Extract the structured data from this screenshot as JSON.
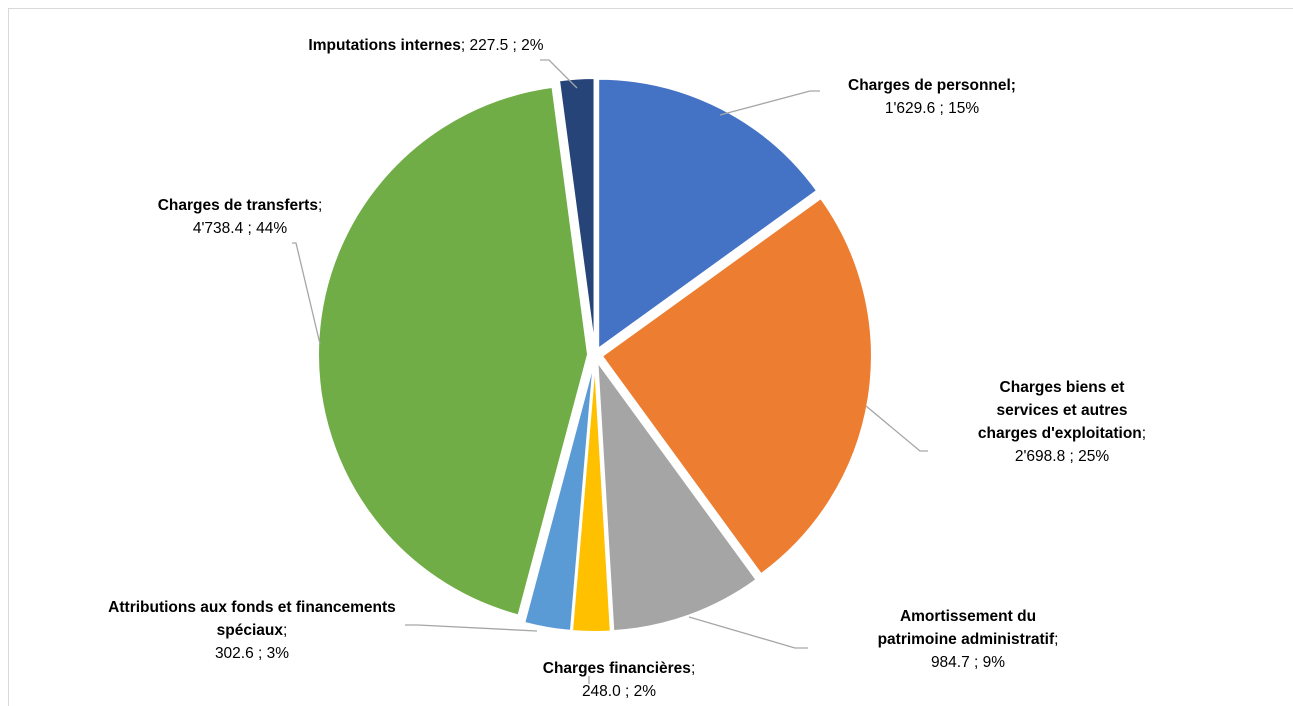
{
  "chart_data": {
    "type": "pie",
    "title": "",
    "start_angle_deg": 0,
    "direction": "clockwise",
    "slices": [
      {
        "name": "Charges de personnel",
        "value": 1629.6,
        "value_label": "1'629.6",
        "percent_label": "15%",
        "color": "#4472c4"
      },
      {
        "name": "Charges biens et services et autres charges d'exploitation",
        "value": 2698.8,
        "value_label": "2'698.8",
        "percent_label": "25%",
        "color": "#ed7d31"
      },
      {
        "name": "Amortissement du patrimoine administratif",
        "value": 984.7,
        "value_label": "984.7",
        "percent_label": "9%",
        "color": "#a5a5a5"
      },
      {
        "name": "Charges financières",
        "value": 248.0,
        "value_label": "248.0",
        "percent_label": "2%",
        "color": "#ffc000"
      },
      {
        "name": "Attributions aux fonds et financements spéciaux",
        "value": 302.6,
        "value_label": "302.6",
        "percent_label": "3%",
        "color": "#5b9bd5"
      },
      {
        "name": "Charges de transferts",
        "value": 4738.4,
        "value_label": "4'738.4",
        "percent_label": "44%",
        "color": "#70ad47"
      },
      {
        "name": "Imputations internes",
        "value": 227.5,
        "value_label": "227.5",
        "percent_label": "2%",
        "color": "#264478"
      }
    ]
  },
  "labels": [
    {
      "lines": [
        {
          "bold": "Charges de personnel;",
          "plain": ""
        },
        {
          "bold": "",
          "plain": "1'629.6 ; 15%"
        }
      ]
    },
    {
      "lines": [
        {
          "bold": "Charges biens et",
          "plain": ""
        },
        {
          "bold": "services et autres",
          "plain": ""
        },
        {
          "bold": "charges d'exploitation",
          "plain": ";"
        },
        {
          "bold": "",
          "plain": "2'698.8 ; 25%"
        }
      ]
    },
    {
      "lines": [
        {
          "bold": "Amortissement du",
          "plain": ""
        },
        {
          "bold": "patrimoine administratif",
          "plain": ";"
        },
        {
          "bold": "",
          "plain": "984.7 ; 9%"
        }
      ]
    },
    {
      "lines": [
        {
          "bold": "Charges financières",
          "plain": ";"
        },
        {
          "bold": "",
          "plain": "248.0 ; 2%"
        }
      ]
    },
    {
      "lines": [
        {
          "bold": "Attributions aux fonds et financements",
          "plain": ""
        },
        {
          "bold": "spéciaux",
          "plain": ";"
        },
        {
          "bold": "",
          "plain": "302.6 ; 3%"
        }
      ]
    },
    {
      "lines": [
        {
          "bold": "Charges de transferts",
          "plain": ";"
        },
        {
          "bold": "",
          "plain": "4'738.4 ; 44%"
        }
      ]
    },
    {
      "lines": [
        {
          "bold": "Imputations internes",
          "plain": ";  227.5 ; 2%"
        }
      ]
    }
  ]
}
